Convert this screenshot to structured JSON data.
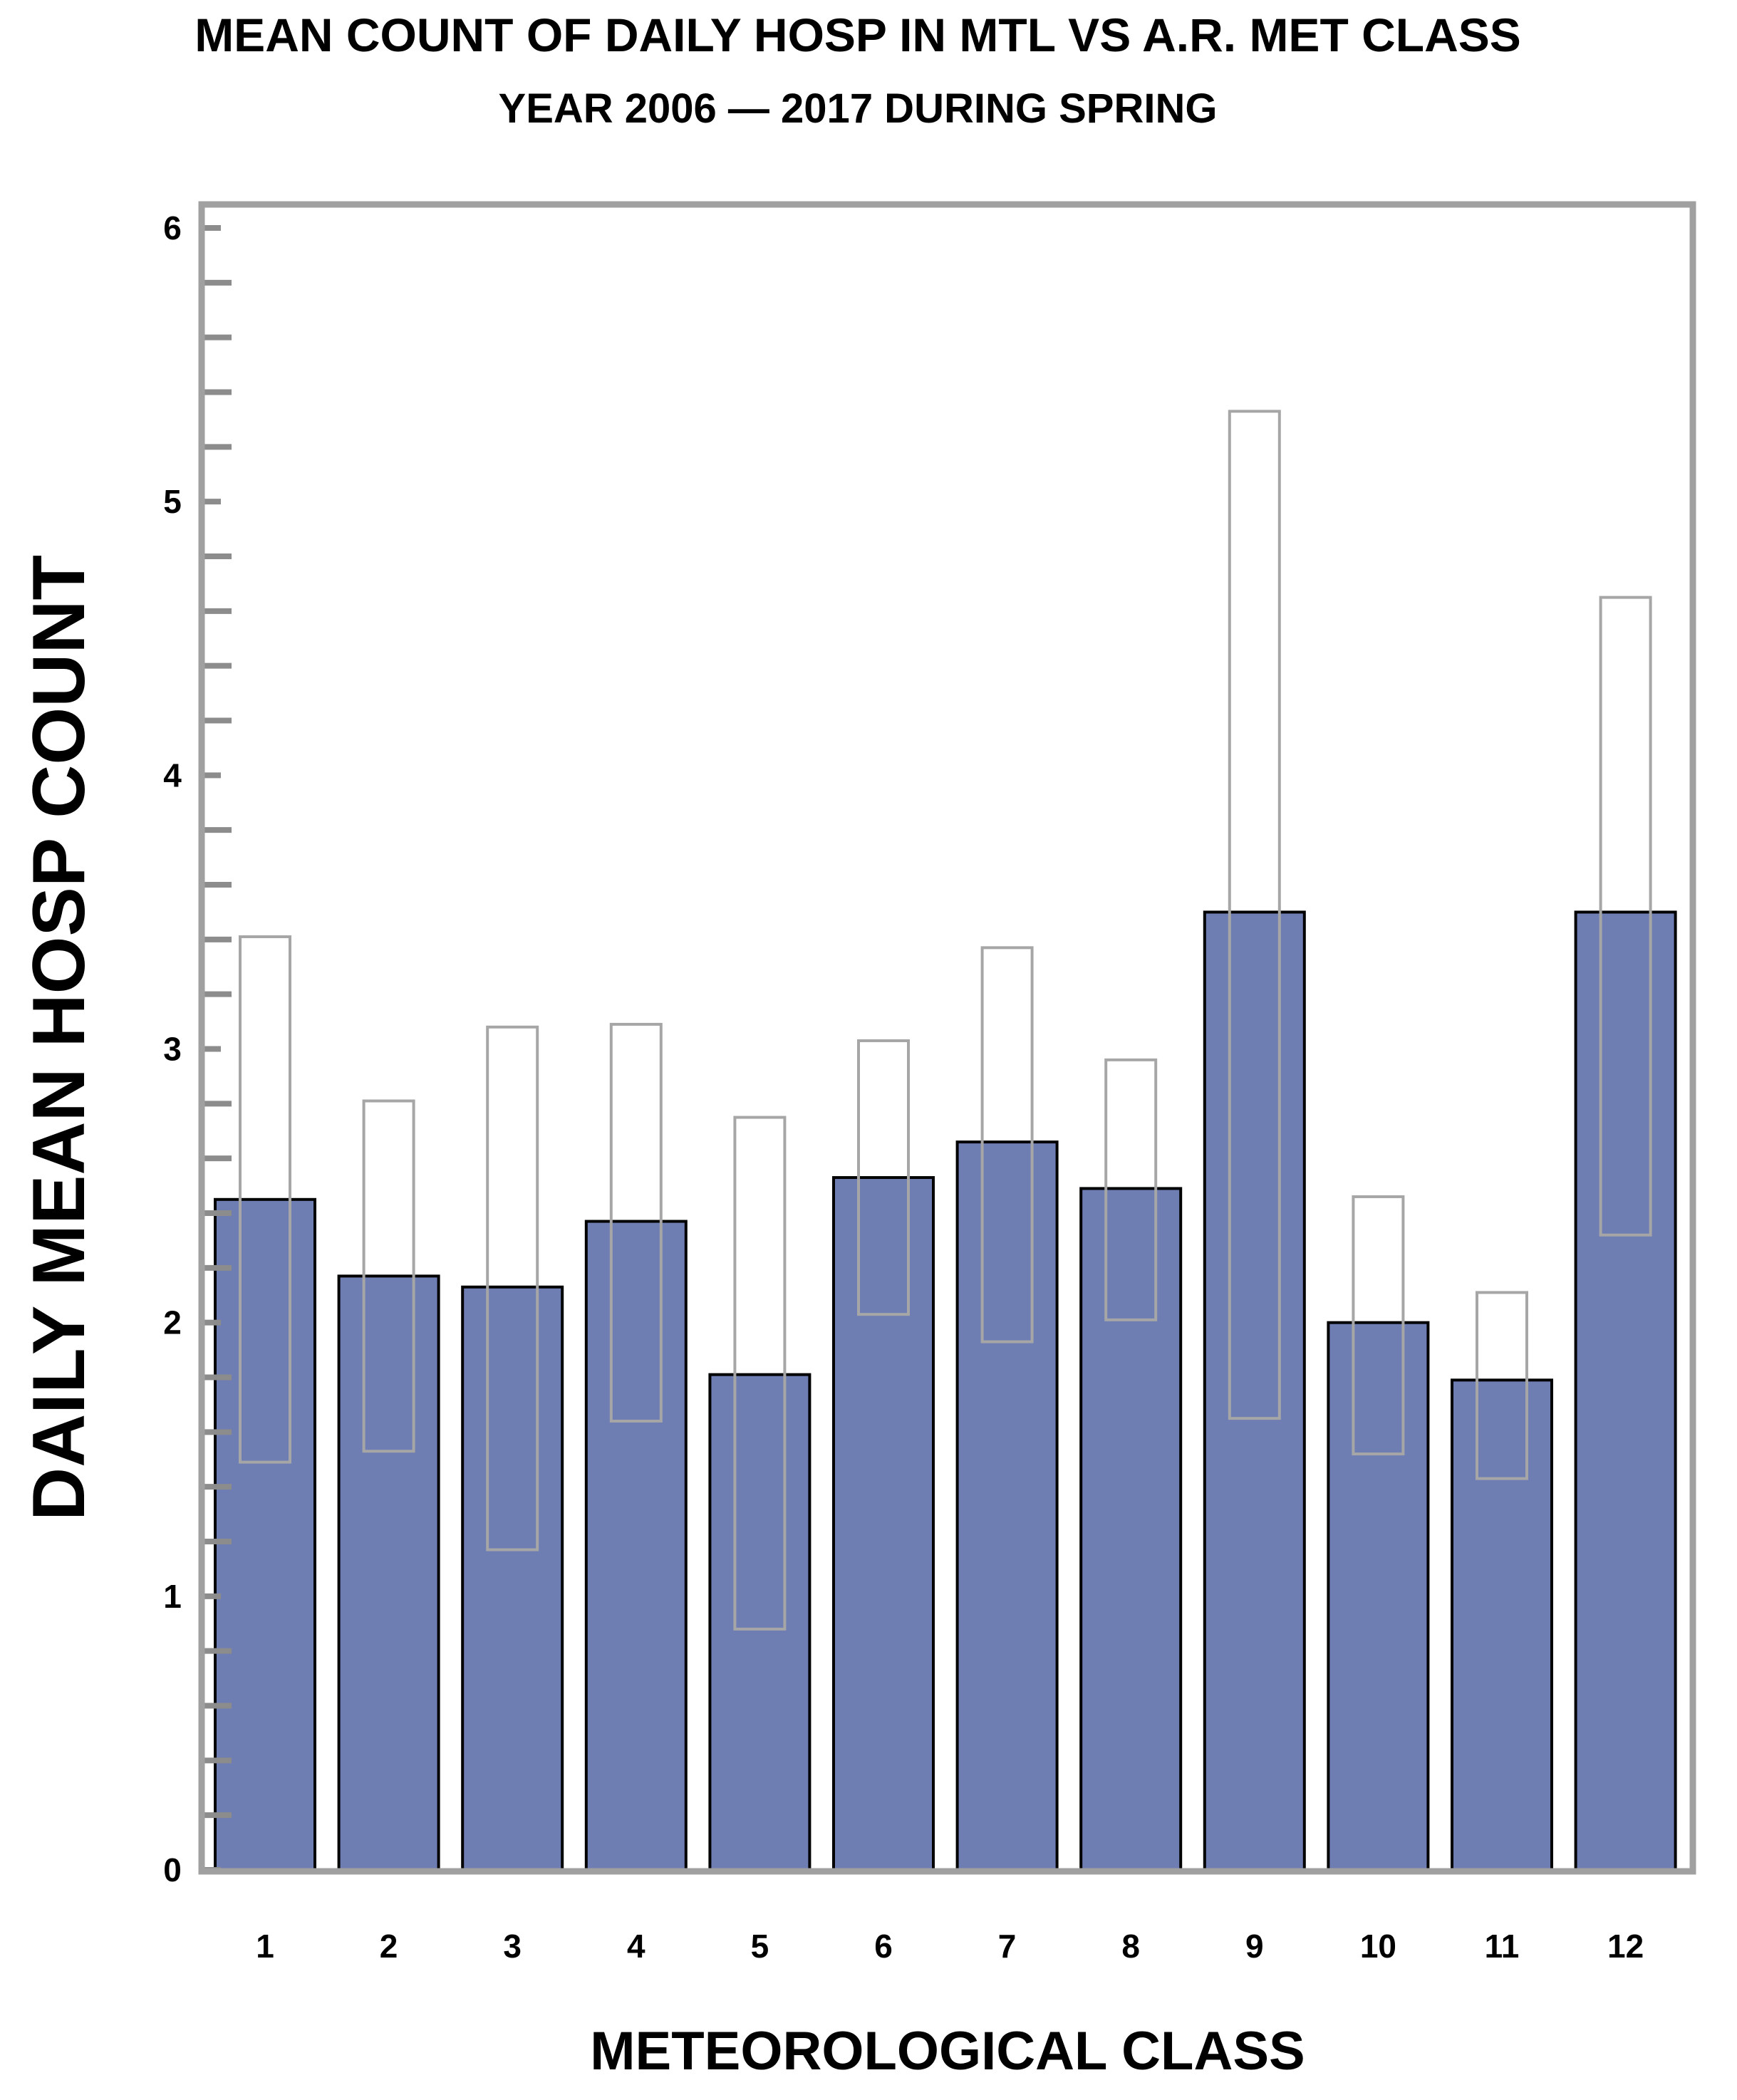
{
  "chart_data": {
    "type": "bar",
    "title": "MEAN COUNT OF DAILY HOSP IN MTL VS A.R. MET CLASS",
    "subtitle": "YEAR  2006 — 2017 DURING SPRING",
    "xlabel": "METEOROLOGICAL CLASS",
    "ylabel": "DAILY MEAN HOSP COUNT",
    "ylim": [
      0,
      6
    ],
    "y_ticks": [
      "0",
      "1",
      "2",
      "3",
      "4",
      "5",
      "6"
    ],
    "categories": [
      "1",
      "2",
      "3",
      "4",
      "5",
      "6",
      "7",
      "8",
      "9",
      "10",
      "11",
      "12"
    ],
    "series": [
      {
        "values": [
          2.45,
          2.17,
          2.13,
          2.37,
          1.81,
          2.53,
          2.66,
          2.49,
          3.5,
          2.0,
          1.79,
          3.5
        ]
      }
    ],
    "intervals": {
      "lower": [
        1.49,
        1.53,
        1.17,
        1.64,
        0.88,
        2.03,
        1.93,
        2.01,
        1.65,
        1.52,
        1.43,
        2.32
      ],
      "upper": [
        3.41,
        2.81,
        3.08,
        3.09,
        2.75,
        3.03,
        3.37,
        2.96,
        5.33,
        2.46,
        2.11,
        4.65
      ]
    },
    "grid": false,
    "legend": "none",
    "colors": {
      "bar_fill": "#6e7db2",
      "bar_stroke": "#000000",
      "interval_stroke": "#a6a6a6",
      "frame": "#a0a0a0"
    }
  }
}
